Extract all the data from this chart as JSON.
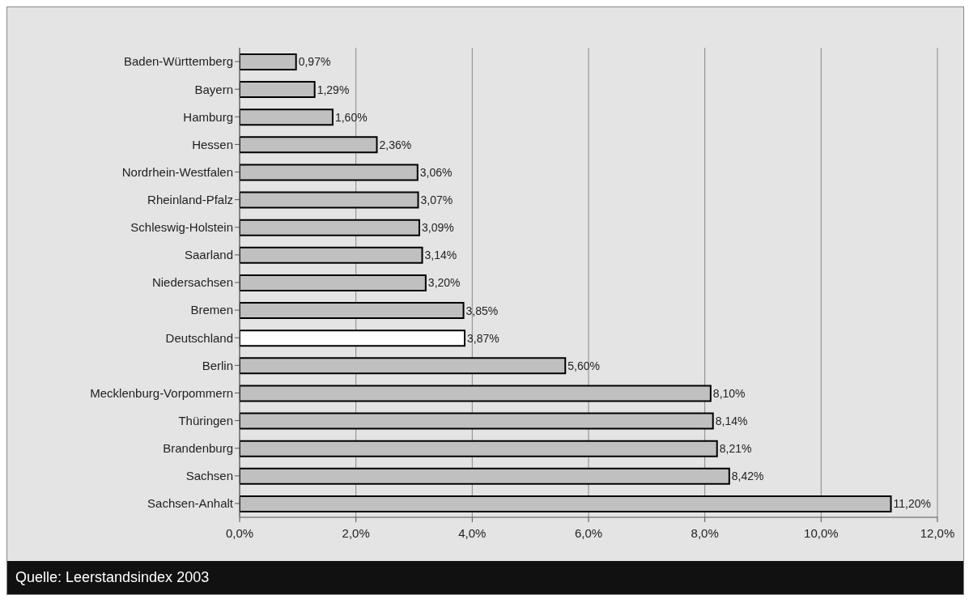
{
  "chart_data": {
    "type": "bar",
    "orientation": "horizontal",
    "categories": [
      "Baden-Württemberg",
      "Bayern",
      "Hamburg",
      "Hessen",
      "Nordrhein-Westfalen",
      "Rheinland-Pfalz",
      "Schleswig-Holstein",
      "Saarland",
      "Niedersachsen",
      "Bremen",
      "Deutschland",
      "Berlin",
      "Mecklenburg-Vorpommern",
      "Thüringen",
      "Brandenburg",
      "Sachsen",
      "Sachsen-Anhalt"
    ],
    "values": [
      0.97,
      1.29,
      1.6,
      2.36,
      3.06,
      3.07,
      3.09,
      3.14,
      3.2,
      3.85,
      3.87,
      5.6,
      8.1,
      8.14,
      8.21,
      8.42,
      11.2
    ],
    "value_labels": [
      "0,97%",
      "1,29%",
      "1,60%",
      "2,36%",
      "3,06%",
      "3,07%",
      "3,09%",
      "3,14%",
      "3,20%",
      "3,85%",
      "3,87%",
      "5,60%",
      "8,10%",
      "8,14%",
      "8,21%",
      "8,42%",
      "11,20%"
    ],
    "colors": [
      "#c0c0c0",
      "#c0c0c0",
      "#c0c0c0",
      "#c0c0c0",
      "#c0c0c0",
      "#c0c0c0",
      "#c0c0c0",
      "#c0c0c0",
      "#c0c0c0",
      "#c0c0c0",
      "#ffffff",
      "#c0c0c0",
      "#c0c0c0",
      "#c0c0c0",
      "#c0c0c0",
      "#c0c0c0",
      "#c0c0c0"
    ],
    "xlim": [
      0,
      12
    ],
    "xticks": [
      {
        "value": 0,
        "label": "0,0%"
      },
      {
        "value": 2,
        "label": "2,0%"
      },
      {
        "value": 4,
        "label": "4,0%"
      },
      {
        "value": 6,
        "label": "6,0%"
      },
      {
        "value": 8,
        "label": "8,0%"
      },
      {
        "value": 10,
        "label": "10,0%"
      },
      {
        "value": 12,
        "label": "12,0%"
      }
    ],
    "grid": "x",
    "legend": false,
    "annotations": [
      "Quelle: Leerstandsindex 2003"
    ]
  }
}
